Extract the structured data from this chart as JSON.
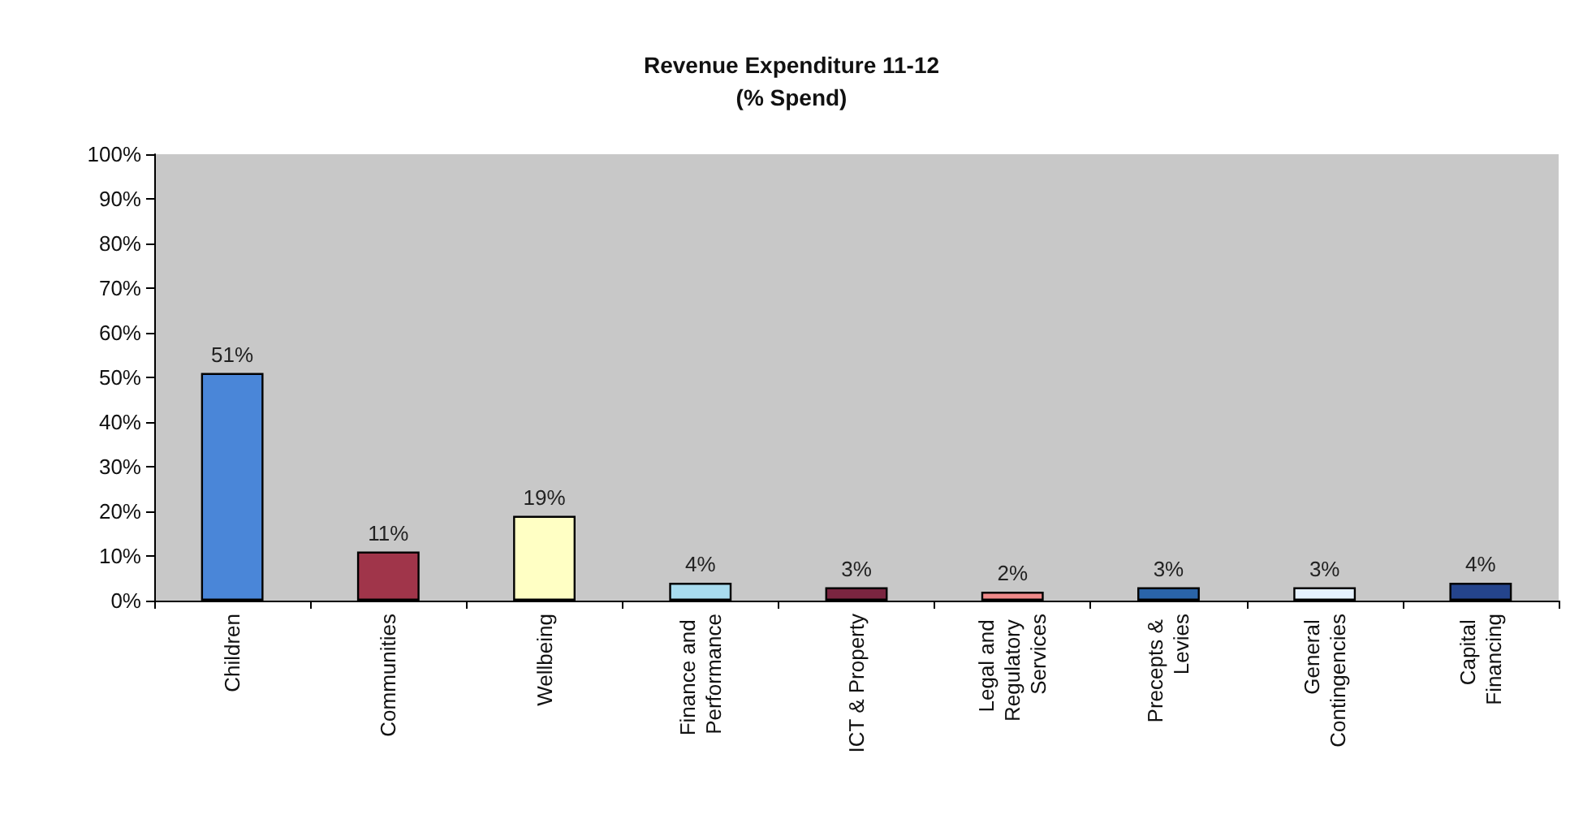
{
  "chart_data": {
    "type": "bar",
    "title": "Revenue Expenditure 11-12",
    "subtitle": "(% Spend)",
    "categories": [
      "Children",
      "Communities",
      "Wellbeing",
      "Finance and Performance",
      "ICT & Property",
      "Legal and Regulatory Services",
      "Precepts & Levies",
      "General Contingencies",
      "Capital Financing"
    ],
    "values": [
      51,
      11,
      19,
      4,
      3,
      2,
      3,
      3,
      4
    ],
    "value_labels": [
      "51%",
      "11%",
      "19%",
      "4%",
      "3%",
      "2%",
      "3%",
      "3%",
      "4%"
    ],
    "colors": [
      "#4a86d8",
      "#a0354a",
      "#ffffc4",
      "#a8dcef",
      "#7a2540",
      "#f08a8a",
      "#2a64a8",
      "#e6f2ff",
      "#24448c"
    ],
    "ylim": [
      0,
      100
    ],
    "yticks": [
      {
        "value": 0,
        "label": "0%"
      },
      {
        "value": 10,
        "label": "10%"
      },
      {
        "value": 20,
        "label": "20%"
      },
      {
        "value": 30,
        "label": "30%"
      },
      {
        "value": 40,
        "label": "40%"
      },
      {
        "value": 50,
        "label": "50%"
      },
      {
        "value": 60,
        "label": "60%"
      },
      {
        "value": 70,
        "label": "70%"
      },
      {
        "value": 80,
        "label": "80%"
      },
      {
        "value": 90,
        "label": "90%"
      },
      {
        "value": 100,
        "label": "100%"
      }
    ]
  }
}
